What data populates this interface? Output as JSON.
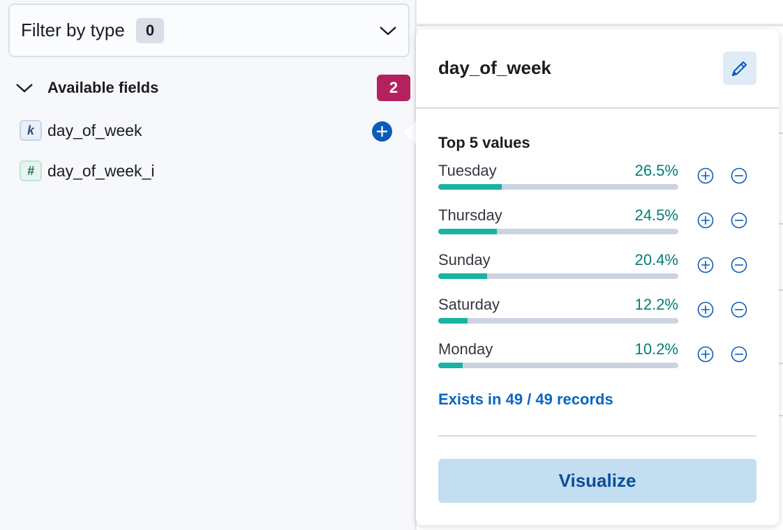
{
  "sidebar": {
    "filter": {
      "label": "Filter by type",
      "count": "0"
    },
    "available": {
      "title": "Available fields",
      "count": "2"
    },
    "fields": [
      {
        "type": "k",
        "name": "day_of_week"
      },
      {
        "type": "#",
        "name": "day_of_week_i"
      }
    ]
  },
  "popover": {
    "title": "day_of_week",
    "section_title": "Top 5 values",
    "values": [
      {
        "name": "Tuesday",
        "pct": "26.5%",
        "fraction": 0.265
      },
      {
        "name": "Thursday",
        "pct": "24.5%",
        "fraction": 0.245
      },
      {
        "name": "Sunday",
        "pct": "20.4%",
        "fraction": 0.204
      },
      {
        "name": "Saturday",
        "pct": "12.2%",
        "fraction": 0.122
      },
      {
        "name": "Monday",
        "pct": "10.2%",
        "fraction": 0.102
      }
    ],
    "exists": "Exists in 49 / 49 records",
    "visualize": "Visualize"
  },
  "colors": {
    "accent": "#0b5cb8",
    "badge": "#b3225f",
    "bar_fill": "#18b3a3",
    "pct_text": "#017d73"
  }
}
